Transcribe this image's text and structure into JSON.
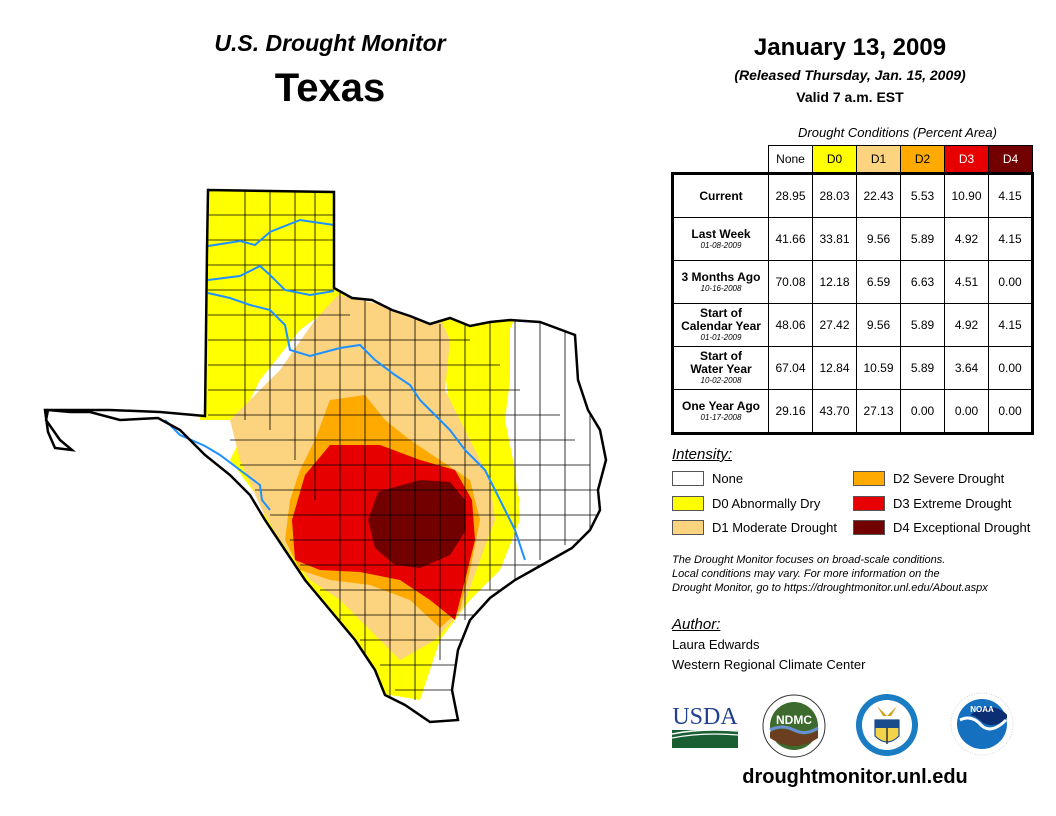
{
  "header": {
    "product": "U.S. Drought Monitor",
    "region": "Texas",
    "date": "January 13, 2009",
    "released": "(Released Thursday, Jan. 15, 2009)",
    "valid": "Valid 7 a.m. EST"
  },
  "table": {
    "caption": "Drought Conditions (Percent Area)",
    "columns": [
      {
        "label": "None",
        "bg": "#ffffff",
        "fg": "#000000"
      },
      {
        "label": "D0",
        "bg": "#ffff00",
        "fg": "#000000"
      },
      {
        "label": "D1",
        "bg": "#fcd37f",
        "fg": "#000000"
      },
      {
        "label": "D2",
        "bg": "#ffaa00",
        "fg": "#000000"
      },
      {
        "label": "D3",
        "bg": "#e60000",
        "fg": "#ffffff"
      },
      {
        "label": "D4",
        "bg": "#730000",
        "fg": "#ffffff"
      }
    ],
    "rows": [
      {
        "label": "Current",
        "date": "",
        "values": [
          "28.95",
          "28.03",
          "22.43",
          "5.53",
          "10.90",
          "4.15"
        ]
      },
      {
        "label": "Last Week",
        "date": "01-08-2009",
        "values": [
          "41.66",
          "33.81",
          "9.56",
          "5.89",
          "4.92",
          "4.15"
        ]
      },
      {
        "label": "3 Months Ago",
        "date": "10-16-2008",
        "values": [
          "70.08",
          "12.18",
          "6.59",
          "6.63",
          "4.51",
          "0.00"
        ]
      },
      {
        "label": "Start of Calendar Year",
        "date": "01-01-2009",
        "values": [
          "48.06",
          "27.42",
          "9.56",
          "5.89",
          "4.92",
          "4.15"
        ]
      },
      {
        "label": "Start of Water Year",
        "date": "10-02-2008",
        "values": [
          "67.04",
          "12.84",
          "10.59",
          "5.89",
          "3.64",
          "0.00"
        ]
      },
      {
        "label": "One Year Ago",
        "date": "01-17-2008",
        "values": [
          "29.16",
          "43.70",
          "27.13",
          "0.00",
          "0.00",
          "0.00"
        ]
      }
    ]
  },
  "legend": {
    "title": "Intensity:",
    "items": [
      {
        "label": "None",
        "color": "#ffffff"
      },
      {
        "label": "D0 Abnormally Dry",
        "color": "#ffff00"
      },
      {
        "label": "D1 Moderate Drought",
        "color": "#fcd37f"
      },
      {
        "label": "D2 Severe Drought",
        "color": "#ffaa00"
      },
      {
        "label": "D3 Extreme Drought",
        "color": "#e60000"
      },
      {
        "label": "D4 Exceptional Drought",
        "color": "#730000"
      }
    ]
  },
  "note": {
    "line1": "The Drought Monitor focuses on broad-scale conditions.",
    "line2": "Local conditions may vary. For more information on the",
    "line3": "Drought Monitor, go to https://droughtmonitor.unl.edu/About.aspx"
  },
  "author": {
    "title": "Author:",
    "name": "Laura Edwards",
    "organization": "Western Regional Climate Center"
  },
  "logos": {
    "usda": "USDA",
    "ndmc": "NDMC",
    "noaa": "NOAA"
  },
  "website": "droughtmonitor.unl.edu",
  "colors": {
    "river": "#1e90ff",
    "border": "#000000"
  }
}
